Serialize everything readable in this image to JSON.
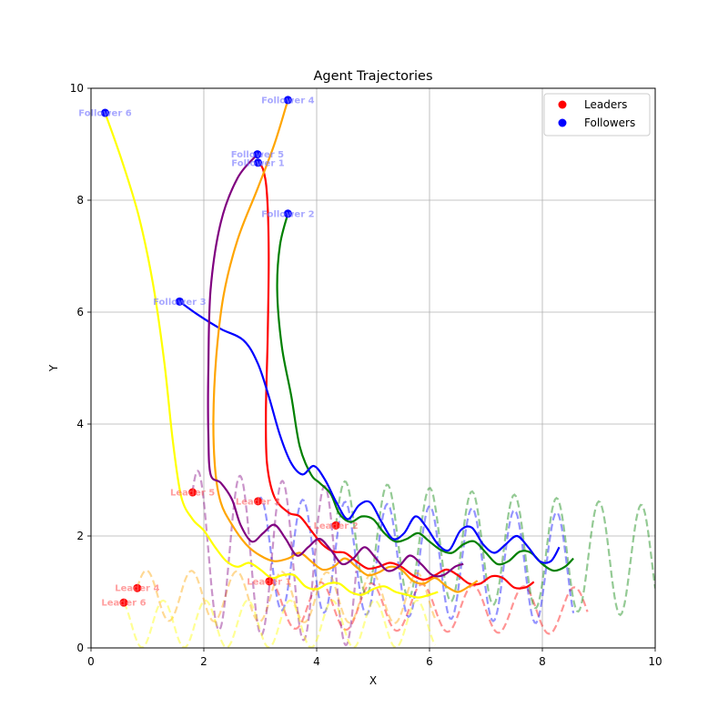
{
  "chart_data": {
    "type": "scatter",
    "title": "Agent Trajectories",
    "xlabel": "X",
    "ylabel": "Y",
    "xlim": [
      0,
      10
    ],
    "ylim": [
      0,
      10
    ],
    "xticks": [
      "0",
      "2",
      "4",
      "6",
      "8",
      "10"
    ],
    "yticks": [
      "0",
      "2",
      "4",
      "6",
      "8",
      "10"
    ],
    "grid": true,
    "legend": {
      "placement": "top-right",
      "entries": [
        {
          "label": "Leaders",
          "color": "#ff0000"
        },
        {
          "label": "Followers",
          "color": "#0000ff"
        }
      ]
    },
    "followers": [
      {
        "name": "Follower 1",
        "color": "#ff0000",
        "x": 2.96,
        "y": 8.67,
        "path": [
          [
            2.96,
            8.67
          ],
          [
            3.05,
            8.55
          ],
          [
            3.12,
            8.1
          ],
          [
            3.15,
            7.0
          ],
          [
            3.13,
            5.5
          ],
          [
            3.1,
            4.2
          ],
          [
            3.12,
            3.3
          ],
          [
            3.25,
            2.7
          ],
          [
            3.5,
            2.42
          ],
          [
            3.7,
            2.35
          ],
          [
            3.9,
            2.1
          ],
          [
            4.1,
            1.85
          ],
          [
            4.3,
            1.72
          ],
          [
            4.5,
            1.7
          ],
          [
            4.7,
            1.55
          ],
          [
            4.9,
            1.42
          ],
          [
            5.1,
            1.45
          ],
          [
            5.3,
            1.52
          ],
          [
            5.5,
            1.45
          ],
          [
            5.7,
            1.3
          ],
          [
            5.9,
            1.22
          ],
          [
            6.1,
            1.3
          ],
          [
            6.3,
            1.4
          ],
          [
            6.5,
            1.3
          ],
          [
            6.7,
            1.15
          ],
          [
            6.9,
            1.15
          ],
          [
            7.1,
            1.28
          ],
          [
            7.3,
            1.25
          ],
          [
            7.5,
            1.08
          ],
          [
            7.7,
            1.08
          ],
          [
            7.85,
            1.18
          ]
        ]
      },
      {
        "name": "Follower 2",
        "color": "#008000",
        "x": 3.49,
        "y": 7.76,
        "path": [
          [
            3.49,
            7.76
          ],
          [
            3.35,
            7.2
          ],
          [
            3.3,
            6.4
          ],
          [
            3.38,
            5.4
          ],
          [
            3.55,
            4.5
          ],
          [
            3.7,
            3.6
          ],
          [
            3.9,
            3.1
          ],
          [
            4.05,
            2.95
          ],
          [
            4.25,
            2.75
          ],
          [
            4.4,
            2.4
          ],
          [
            4.6,
            2.25
          ],
          [
            4.8,
            2.35
          ],
          [
            5.0,
            2.3
          ],
          [
            5.2,
            2.05
          ],
          [
            5.4,
            1.9
          ],
          [
            5.6,
            1.95
          ],
          [
            5.8,
            2.05
          ],
          [
            6.0,
            1.9
          ],
          [
            6.2,
            1.75
          ],
          [
            6.4,
            1.7
          ],
          [
            6.6,
            1.85
          ],
          [
            6.8,
            1.9
          ],
          [
            7.0,
            1.7
          ],
          [
            7.2,
            1.5
          ],
          [
            7.4,
            1.55
          ],
          [
            7.6,
            1.72
          ],
          [
            7.8,
            1.7
          ],
          [
            8.0,
            1.5
          ],
          [
            8.2,
            1.38
          ],
          [
            8.4,
            1.45
          ],
          [
            8.55,
            1.6
          ]
        ]
      },
      {
        "name": "Follower 3",
        "color": "#0000ff",
        "x": 1.57,
        "y": 6.19,
        "path": [
          [
            1.57,
            6.19
          ],
          [
            1.9,
            5.95
          ],
          [
            2.3,
            5.7
          ],
          [
            2.7,
            5.5
          ],
          [
            2.95,
            5.1
          ],
          [
            3.15,
            4.5
          ],
          [
            3.35,
            3.8
          ],
          [
            3.55,
            3.3
          ],
          [
            3.75,
            3.1
          ],
          [
            3.95,
            3.25
          ],
          [
            4.15,
            3.0
          ],
          [
            4.35,
            2.6
          ],
          [
            4.55,
            2.3
          ],
          [
            4.75,
            2.55
          ],
          [
            4.95,
            2.6
          ],
          [
            5.15,
            2.25
          ],
          [
            5.35,
            1.95
          ],
          [
            5.55,
            2.05
          ],
          [
            5.75,
            2.35
          ],
          [
            5.95,
            2.15
          ],
          [
            6.15,
            1.85
          ],
          [
            6.35,
            1.75
          ],
          [
            6.55,
            2.1
          ],
          [
            6.75,
            2.15
          ],
          [
            6.95,
            1.85
          ],
          [
            7.15,
            1.7
          ],
          [
            7.35,
            1.85
          ],
          [
            7.55,
            2.0
          ],
          [
            7.75,
            1.8
          ],
          [
            7.95,
            1.55
          ],
          [
            8.15,
            1.55
          ],
          [
            8.3,
            1.8
          ]
        ]
      },
      {
        "name": "Follower 4",
        "color": "#ffa500",
        "x": 3.49,
        "y": 9.79,
        "path": [
          [
            3.49,
            9.79
          ],
          [
            3.25,
            9.0
          ],
          [
            2.95,
            8.2
          ],
          [
            2.6,
            7.3
          ],
          [
            2.35,
            6.3
          ],
          [
            2.22,
            5.2
          ],
          [
            2.17,
            4.1
          ],
          [
            2.2,
            3.2
          ],
          [
            2.3,
            2.6
          ],
          [
            2.5,
            2.2
          ],
          [
            2.75,
            1.85
          ],
          [
            3.0,
            1.65
          ],
          [
            3.25,
            1.55
          ],
          [
            3.5,
            1.6
          ],
          [
            3.7,
            1.7
          ],
          [
            3.9,
            1.55
          ],
          [
            4.1,
            1.4
          ],
          [
            4.3,
            1.45
          ],
          [
            4.5,
            1.6
          ],
          [
            4.7,
            1.45
          ],
          [
            4.9,
            1.3
          ],
          [
            5.1,
            1.35
          ],
          [
            5.3,
            1.45
          ],
          [
            5.5,
            1.4
          ],
          [
            5.7,
            1.2
          ],
          [
            5.9,
            1.15
          ],
          [
            6.1,
            1.25
          ],
          [
            6.3,
            1.1
          ],
          [
            6.5,
            1.0
          ],
          [
            6.7,
            1.1
          ],
          [
            6.85,
            1.2
          ]
        ]
      },
      {
        "name": "Follower 5",
        "color": "#800080",
        "x": 2.95,
        "y": 8.82,
        "path": [
          [
            2.95,
            8.82
          ],
          [
            2.6,
            8.4
          ],
          [
            2.3,
            7.6
          ],
          [
            2.12,
            6.4
          ],
          [
            2.08,
            5.0
          ],
          [
            2.08,
            3.8
          ],
          [
            2.12,
            3.1
          ],
          [
            2.3,
            2.95
          ],
          [
            2.5,
            2.65
          ],
          [
            2.65,
            2.2
          ],
          [
            2.85,
            1.9
          ],
          [
            3.05,
            2.05
          ],
          [
            3.25,
            2.2
          ],
          [
            3.45,
            1.95
          ],
          [
            3.65,
            1.65
          ],
          [
            3.85,
            1.8
          ],
          [
            4.05,
            1.95
          ],
          [
            4.25,
            1.75
          ],
          [
            4.45,
            1.5
          ],
          [
            4.65,
            1.6
          ],
          [
            4.85,
            1.8
          ],
          [
            5.05,
            1.6
          ],
          [
            5.25,
            1.38
          ],
          [
            5.45,
            1.45
          ],
          [
            5.65,
            1.65
          ],
          [
            5.85,
            1.5
          ],
          [
            6.05,
            1.3
          ],
          [
            6.25,
            1.3
          ],
          [
            6.45,
            1.45
          ],
          [
            6.6,
            1.5
          ]
        ]
      },
      {
        "name": "Follower 6",
        "color": "#ffff00",
        "x": 0.25,
        "y": 9.56,
        "path": [
          [
            0.25,
            9.56
          ],
          [
            0.55,
            8.7
          ],
          [
            0.85,
            7.7
          ],
          [
            1.1,
            6.5
          ],
          [
            1.3,
            5.1
          ],
          [
            1.45,
            3.7
          ],
          [
            1.6,
            2.7
          ],
          [
            1.8,
            2.3
          ],
          [
            2.0,
            2.1
          ],
          [
            2.2,
            1.8
          ],
          [
            2.4,
            1.55
          ],
          [
            2.6,
            1.45
          ],
          [
            2.8,
            1.52
          ],
          [
            3.0,
            1.4
          ],
          [
            3.2,
            1.25
          ],
          [
            3.4,
            1.3
          ],
          [
            3.6,
            1.3
          ],
          [
            3.8,
            1.1
          ],
          [
            4.0,
            1.05
          ],
          [
            4.2,
            1.15
          ],
          [
            4.4,
            1.15
          ],
          [
            4.6,
            1.0
          ],
          [
            4.8,
            0.95
          ],
          [
            5.0,
            1.05
          ],
          [
            5.2,
            1.1
          ],
          [
            5.4,
            1.0
          ],
          [
            5.6,
            0.95
          ],
          [
            5.8,
            0.9
          ],
          [
            6.0,
            0.95
          ],
          [
            6.15,
            1.0
          ]
        ]
      }
    ],
    "leaders": [
      {
        "name": "Leader 1",
        "color": "#ff0000",
        "x": 3.16,
        "y": 1.19,
        "amp": 0.42,
        "period": 0.9,
        "phase": 1.5,
        "base_drift": -0.02,
        "x_end": 8.8
      },
      {
        "name": "Leader 2",
        "color": "#008000",
        "x": 4.34,
        "y": 2.19,
        "amp": 1.0,
        "period": 0.75,
        "phase": 0.2,
        "base_drift": -0.08,
        "x_end": 10.0
      },
      {
        "name": "Leader 3",
        "color": "#0000ff",
        "x": 2.96,
        "y": 2.62,
        "amp": 1.0,
        "period": 0.75,
        "phase": 1.2,
        "base_drift": -0.05,
        "x_end": 8.55
      },
      {
        "name": "Leader 4",
        "color": "#ffa500",
        "x": 0.82,
        "y": 1.07,
        "amp": 0.45,
        "period": 0.8,
        "phase": 0.3,
        "base_drift": -0.01,
        "x_end": 6.1
      },
      {
        "name": "Leader 5",
        "color": "#800080",
        "x": 1.8,
        "y": 2.78,
        "amp": 1.4,
        "period": 0.75,
        "phase": 0.8,
        "base_drift": -0.12,
        "x_end": 4.7
      },
      {
        "name": "Leader 6",
        "color": "#ffff00",
        "x": 0.58,
        "y": 0.81,
        "amp": 0.42,
        "period": 0.75,
        "phase": 2.0,
        "base_drift": 0.0,
        "x_end": 6.1
      }
    ]
  }
}
